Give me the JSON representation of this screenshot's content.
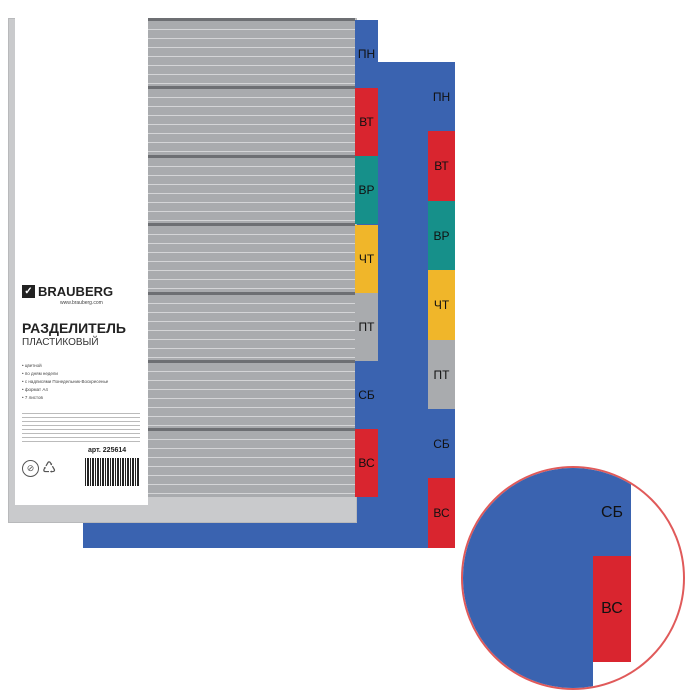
{
  "brand": "BRAUBERG",
  "brand_url": "www.brauberg.com",
  "product_title": "РАЗДЕЛИТЕЛЬ",
  "product_subtitle": "ПЛАСТИКОВЫЙ",
  "features": [
    "• цветной",
    "• по дням недели",
    "• с надписями Понедельник-Воскресенье",
    "• формат А4",
    "• 7 листов"
  ],
  "article": "арт. 225614",
  "tabs": [
    {
      "label": "ПН",
      "color": "#3a63b0"
    },
    {
      "label": "ВТ",
      "color": "#d9252f"
    },
    {
      "label": "ВР",
      "color": "#16908a"
    },
    {
      "label": "ЧТ",
      "color": "#f0b62a"
    },
    {
      "label": "ПТ",
      "color": "#a9abae"
    },
    {
      "label": "СБ",
      "color": "#3a63b0"
    },
    {
      "label": "ВС",
      "color": "#d9252f"
    }
  ],
  "zoom_tabs": [
    "СБ",
    "ВС"
  ]
}
